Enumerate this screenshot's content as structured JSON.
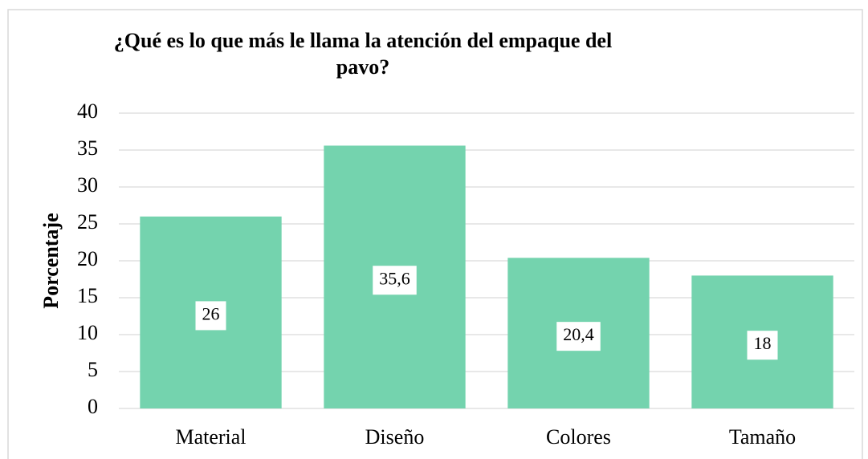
{
  "chart_data": {
    "type": "bar",
    "title": "¿Qué es lo que más le llama la atención del empaque del pavo?",
    "y_label": "Porcentaje",
    "categories": [
      "Material",
      "Diseño",
      "Colores",
      "Tamaño"
    ],
    "values": [
      26,
      35.6,
      20.4,
      18
    ],
    "value_labels": [
      "26",
      "35,6",
      "20,4",
      "18"
    ],
    "color": "#74d3ae",
    "ylim": [
      0,
      40
    ],
    "yticks": [
      0,
      5,
      10,
      15,
      20,
      25,
      30,
      35,
      40
    ],
    "grid": true
  }
}
